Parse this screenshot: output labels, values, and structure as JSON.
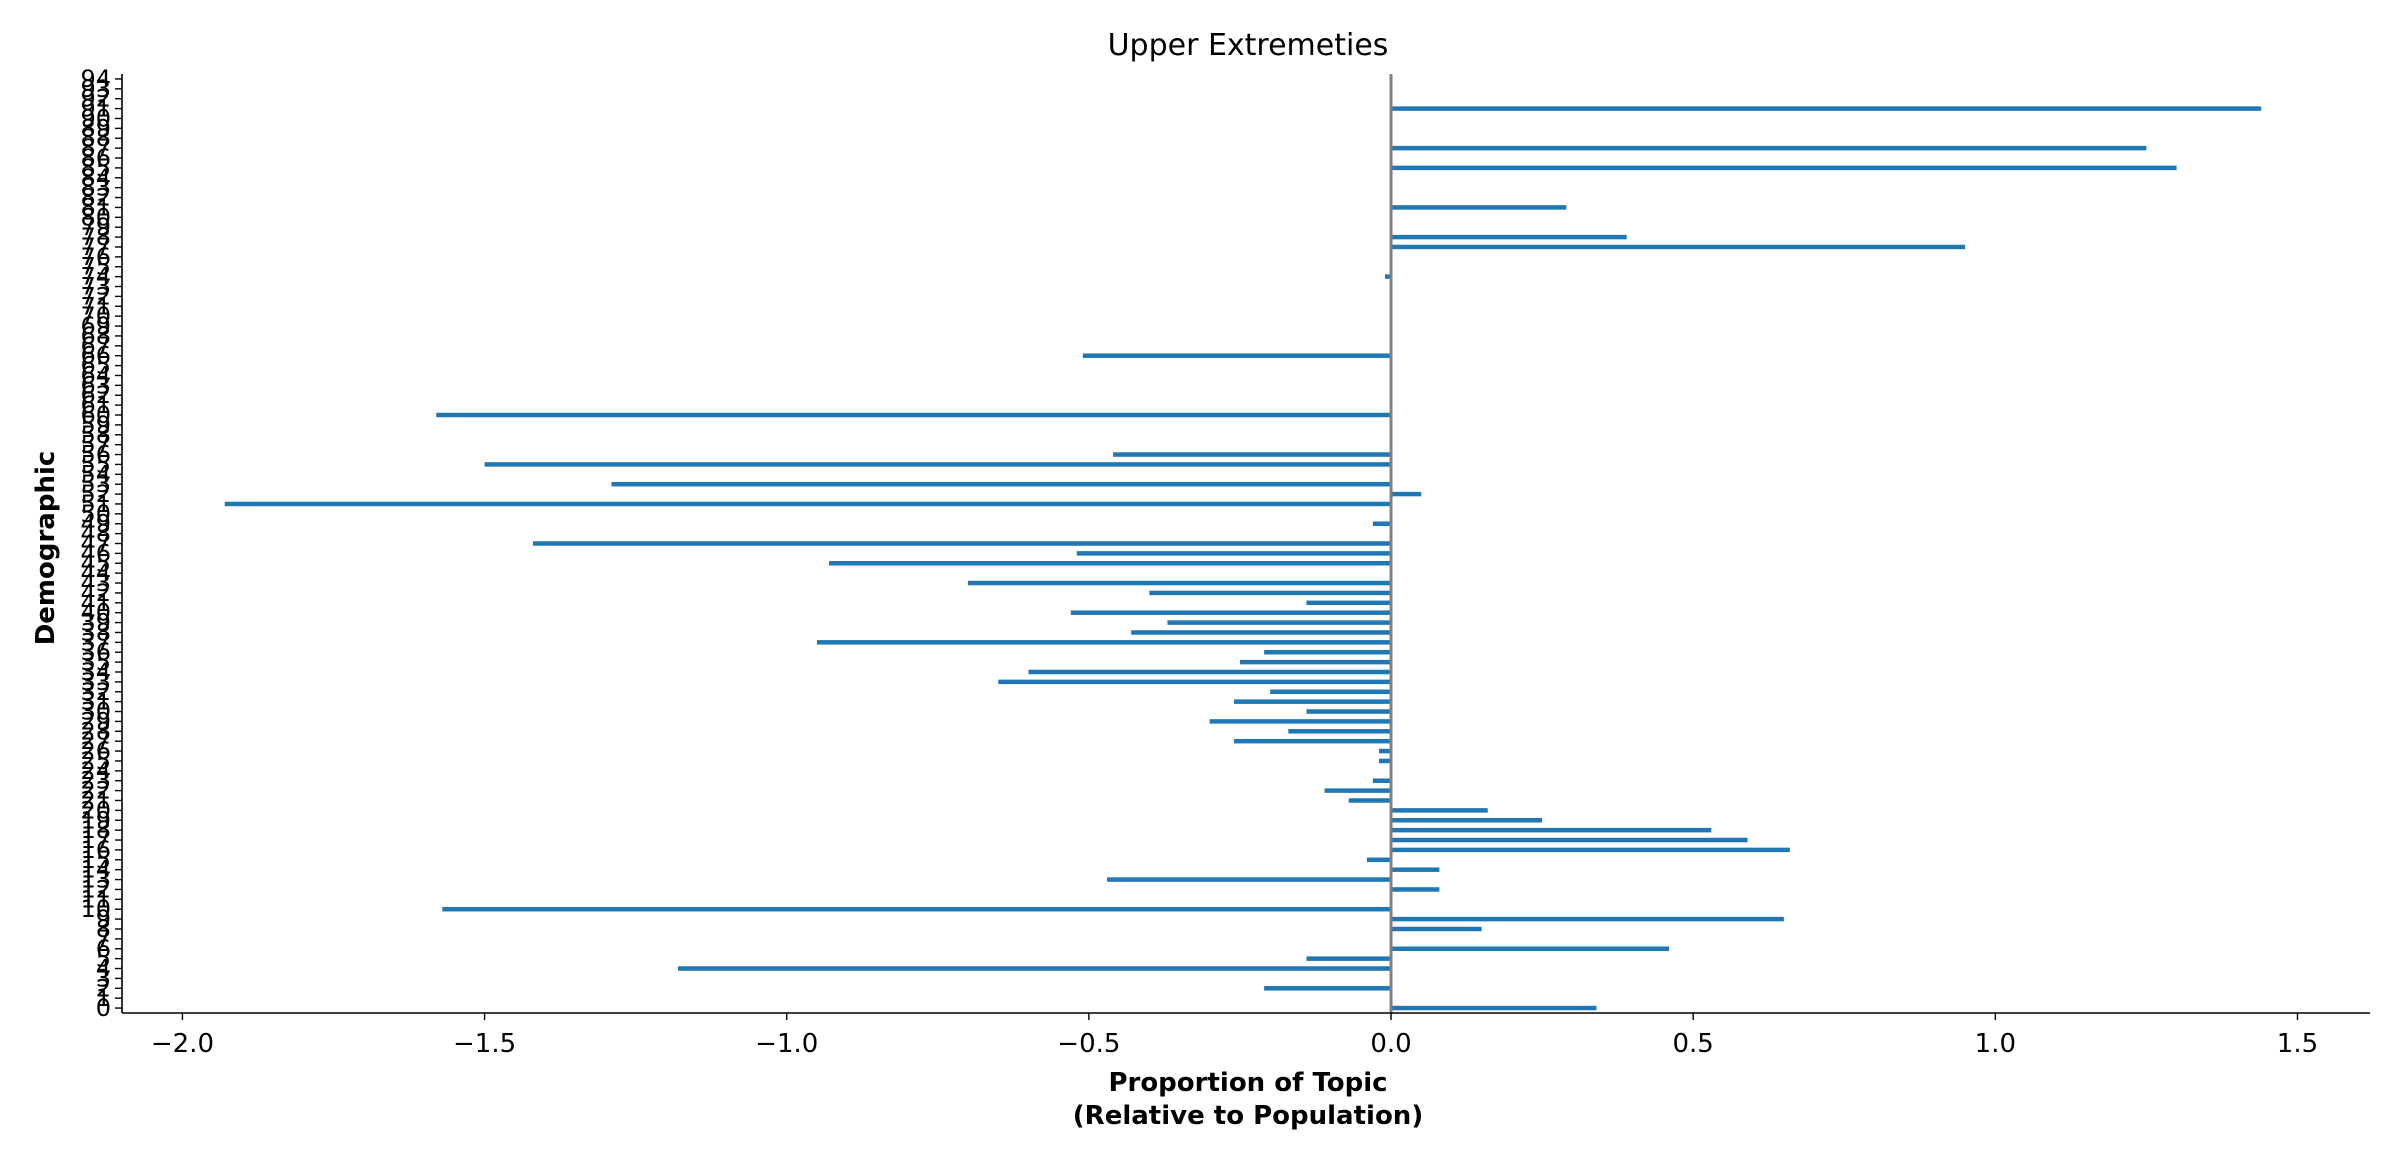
{
  "chart_data": {
    "type": "bar",
    "orientation": "horizontal",
    "title": "Upper Extremeties",
    "xlabel_line1": "Proportion of Topic",
    "xlabel_line2": "(Relative to Population)",
    "ylabel": "Demographic",
    "xlim": [
      -2.1,
      1.62
    ],
    "ylim": [
      -0.5,
      94.5
    ],
    "xticks": [
      -2.0,
      -1.5,
      -1.0,
      -0.5,
      0.0,
      0.5,
      1.0,
      1.5
    ],
    "xtick_labels": [
      "−2.0",
      "−1.5",
      "−1.0",
      "−0.5",
      "0.0",
      "0.5",
      "1.0",
      "1.5"
    ],
    "bar_color": "#1f77b4",
    "zero_line_color": "#808080",
    "grid": false,
    "categories": [
      "0",
      "1",
      "2",
      "3",
      "4",
      "5",
      "6",
      "7",
      "8",
      "9",
      "10",
      "11",
      "12",
      "13",
      "14",
      "15",
      "16",
      "17",
      "18",
      "19",
      "20",
      "21",
      "22",
      "23",
      "24",
      "25",
      "26",
      "27",
      "28",
      "29",
      "30",
      "31",
      "32",
      "33",
      "34",
      "35",
      "36",
      "37",
      "38",
      "39",
      "40",
      "41",
      "42",
      "43",
      "44",
      "45",
      "46",
      "47",
      "48",
      "49",
      "50",
      "51",
      "52",
      "53",
      "54",
      "55",
      "56",
      "57",
      "58",
      "59",
      "60",
      "61",
      "62",
      "63",
      "64",
      "65",
      "66",
      "67",
      "68",
      "69",
      "70",
      "71",
      "72",
      "73",
      "74",
      "75",
      "76",
      "77",
      "78",
      "79",
      "80",
      "81",
      "82",
      "83",
      "84",
      "85",
      "86",
      "87",
      "88",
      "89",
      "90",
      "91",
      "92",
      "93",
      "94"
    ],
    "values": [
      0.34,
      0.0,
      -0.21,
      0.0,
      -1.18,
      -0.14,
      0.46,
      0.0,
      0.15,
      0.65,
      -1.57,
      0.0,
      0.08,
      -0.47,
      0.08,
      -0.04,
      0.66,
      0.59,
      0.53,
      0.25,
      0.16,
      -0.07,
      -0.11,
      -0.03,
      0.0,
      -0.02,
      -0.02,
      -0.26,
      -0.17,
      -0.3,
      -0.14,
      -0.26,
      -0.2,
      -0.65,
      -0.6,
      -0.25,
      -0.21,
      -0.95,
      -0.43,
      -0.37,
      -0.53,
      -0.14,
      -0.4,
      -0.7,
      0.0,
      -0.93,
      -0.52,
      -1.42,
      0.0,
      -0.03,
      0.0,
      -1.93,
      0.05,
      -1.29,
      0.0,
      -1.5,
      -0.46,
      0.0,
      0.0,
      0.0,
      -1.58,
      0.0,
      0.0,
      0.0,
      0.0,
      0.0,
      -0.51,
      0.0,
      0.0,
      0.0,
      0.0,
      0.0,
      0.0,
      0.0,
      -0.01,
      0.0,
      0.0,
      0.95,
      0.39,
      0.0,
      0.0,
      0.29,
      0.0,
      0.0,
      0.0,
      1.3,
      0.0,
      1.25,
      0.0,
      0.0,
      0.0,
      1.44,
      0.0,
      0.0,
      0.0
    ]
  }
}
